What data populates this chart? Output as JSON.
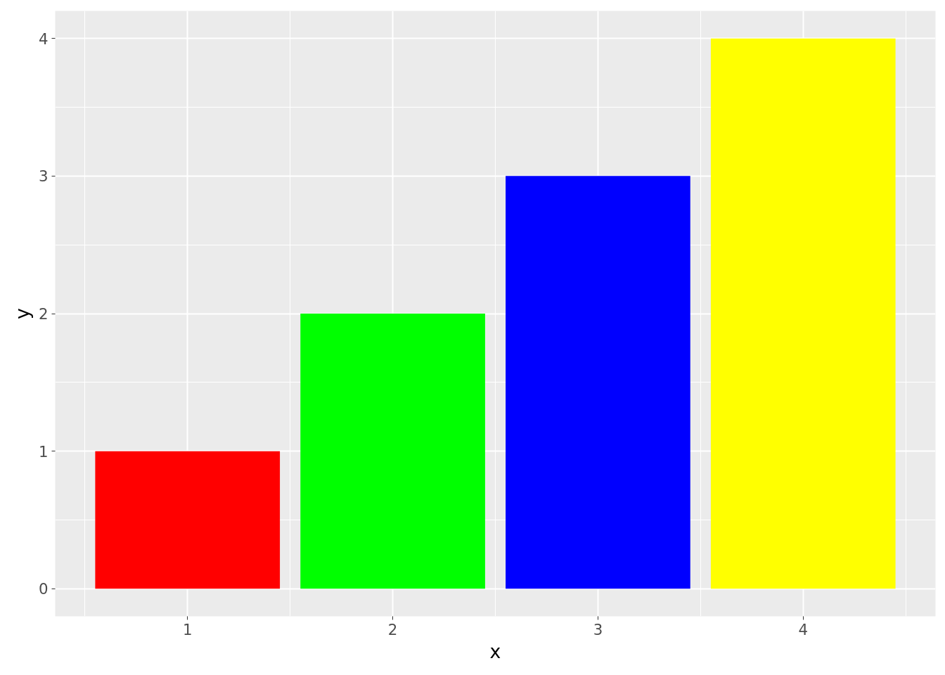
{
  "chart_data": {
    "type": "bar",
    "xlabel": "x",
    "ylabel": "y",
    "x": [
      1,
      2,
      3,
      4
    ],
    "values": [
      1,
      2,
      3,
      4
    ],
    "colors": [
      "#ff0000",
      "#00ff00",
      "#0000ff",
      "#ffff00"
    ],
    "xlim": [
      0.355,
      4.645
    ],
    "xticks": [
      1,
      2,
      3,
      4
    ],
    "ylim": [
      -0.2,
      4.2
    ],
    "yticks": [
      0,
      1,
      2,
      3,
      4
    ],
    "grid": true
  }
}
